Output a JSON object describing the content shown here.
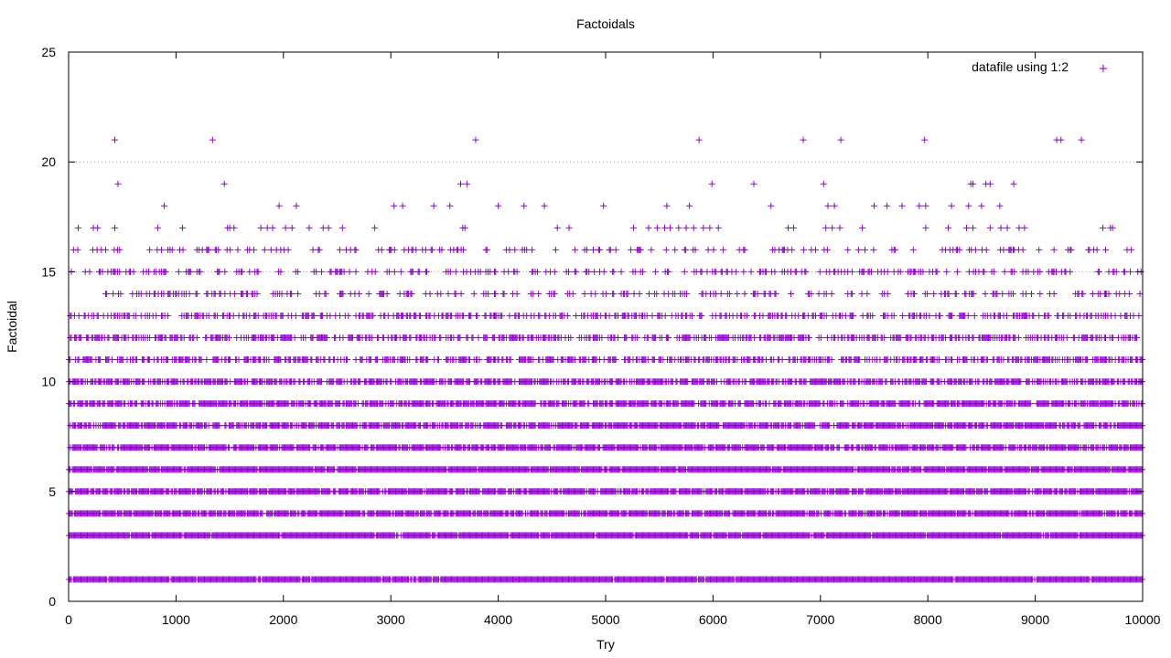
{
  "chart_data": {
    "type": "scatter",
    "title": "Factoidals",
    "xlabel": "Try",
    "ylabel": "Factoidal",
    "xlim": [
      0,
      10000
    ],
    "ylim": [
      0,
      25
    ],
    "xticks": [
      0,
      1000,
      2000,
      3000,
      4000,
      5000,
      6000,
      7000,
      8000,
      9000,
      10000
    ],
    "yticks": [
      0,
      5,
      10,
      15,
      20,
      25
    ],
    "grid": "horizontal dotted at y=15 and y=20",
    "legend_position": "top-right",
    "marker": "+",
    "series": [
      {
        "name": "datafile using 1:2",
        "color": "#9400d3",
        "dense_levels": [
          1,
          3,
          4,
          5,
          6,
          7,
          8,
          9,
          10,
          11,
          12,
          13,
          14,
          15,
          16
        ],
        "x_range": [
          0,
          10000
        ],
        "x_step": 10,
        "sparse_points": [
          {
            "y": 21,
            "x": [
              430,
              1340,
              3790,
              5870,
              6840,
              7190,
              7970,
              9200,
              9240,
              9430
            ]
          },
          {
            "y": 19,
            "x": [
              460,
              1450,
              3650,
              3710,
              5990,
              6380,
              7030,
              8400,
              8420,
              8540,
              8580,
              8800
            ]
          },
          {
            "y": 18,
            "x": [
              890,
              1960,
              2120,
              3030,
              3110,
              3400,
              3550,
              4000,
              4240,
              4430,
              4980,
              5570,
              5780,
              6540,
              7070,
              7130,
              7500,
              7620,
              7760,
              7920,
              7980,
              8220,
              8380,
              8500,
              8670
            ]
          },
          {
            "y": 17,
            "x": [
              90,
              230,
              270,
              430,
              830,
              1060,
              1480,
              1500,
              1540,
              1790,
              1850,
              1900,
              2020,
              2080,
              2240,
              2370,
              2420,
              2550,
              2850,
              3670,
              3690,
              4550,
              4660,
              5260,
              5400,
              5480,
              5550,
              5600,
              5680,
              5750,
              5820,
              5910,
              5970,
              6050,
              6700,
              6750,
              7050,
              7110,
              7180,
              7390,
              7980,
              8190,
              8360,
              8420,
              8580,
              8680,
              8740,
              8850,
              8900,
              9630,
              9700,
              9720
            ]
          }
        ]
      }
    ]
  },
  "legend": {
    "label": "datafile using 1:2",
    "symbol": "+"
  }
}
